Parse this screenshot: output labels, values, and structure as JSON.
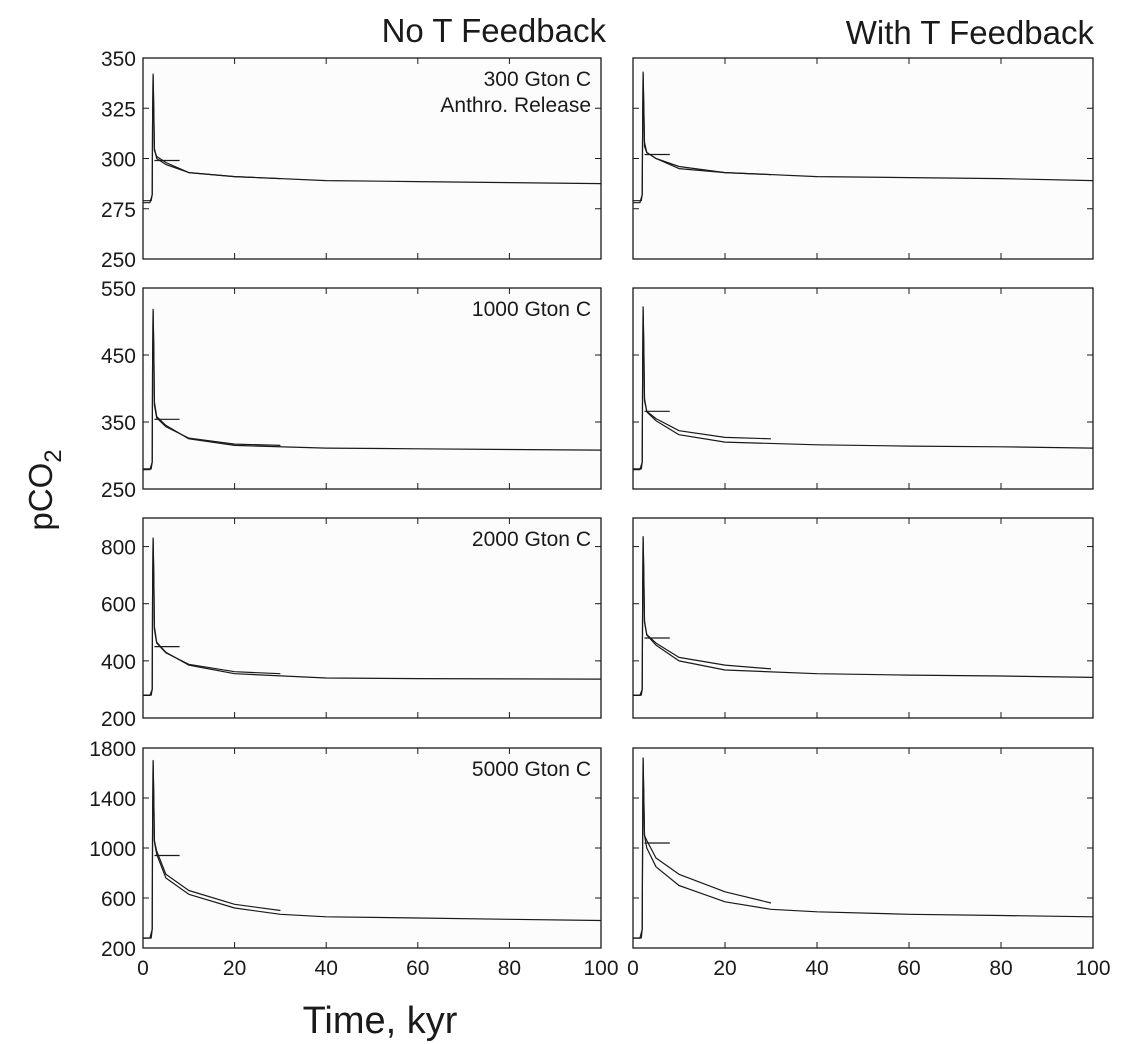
{
  "figure": {
    "column_titles": [
      "No T Feedback",
      "With T Feedback"
    ],
    "ylabel_main": "pCO",
    "ylabel_sub": "2",
    "xlabel": "Time, kyr"
  },
  "chart_data": [
    {
      "type": "line",
      "row": 0,
      "col": 0,
      "annotation": [
        "300 Gton C",
        "Anthro. Release"
      ],
      "xlim": [
        0,
        100
      ],
      "ylim": [
        250,
        350
      ],
      "x_ticks": [
        0,
        20,
        40,
        60,
        80,
        100
      ],
      "y_ticks": [
        250,
        275,
        300,
        325,
        350
      ],
      "y_tick_labels": [
        "250",
        "275",
        "300",
        "325",
        "350"
      ],
      "series": [
        {
          "x": [
            0,
            1.5,
            1.8,
            2.0,
            2.1,
            2.2,
            2.35,
            2.5,
            3,
            5,
            10,
            20,
            40,
            60,
            80,
            100
          ],
          "y": [
            279,
            279,
            279,
            282,
            320,
            342,
            325,
            305,
            300,
            297,
            293,
            291,
            289,
            288.5,
            288,
            287.5
          ]
        },
        {
          "x": [
            0,
            1.5,
            2.0,
            2.1,
            2.2,
            2.35,
            2.5,
            3,
            5,
            10,
            20,
            30
          ],
          "y": [
            278,
            278,
            282,
            320,
            341,
            322,
            304,
            301,
            298,
            293,
            291,
            290
          ]
        },
        {
          "x": [
            2.5,
            8
          ],
          "y": [
            299,
            299
          ]
        }
      ]
    },
    {
      "type": "line",
      "row": 0,
      "col": 1,
      "xlim": [
        0,
        100
      ],
      "ylim": [
        250,
        350
      ],
      "x_ticks": [
        0,
        20,
        40,
        60,
        80,
        100
      ],
      "y_ticks": [
        250,
        275,
        300,
        325,
        350
      ],
      "series": [
        {
          "x": [
            0,
            1.5,
            1.8,
            2.0,
            2.1,
            2.2,
            2.35,
            2.5,
            3,
            5,
            10,
            20,
            40,
            60,
            80,
            100
          ],
          "y": [
            279,
            279,
            279,
            282,
            320,
            343,
            327,
            308,
            303,
            300,
            295,
            293,
            291,
            290.5,
            290,
            289
          ]
        },
        {
          "x": [
            0,
            1.5,
            2.0,
            2.1,
            2.2,
            2.35,
            2.5,
            3,
            5,
            10,
            20,
            30
          ],
          "y": [
            278,
            278,
            282,
            320,
            342,
            324,
            306,
            303,
            300,
            296,
            293,
            292
          ]
        },
        {
          "x": [
            2.5,
            8
          ],
          "y": [
            302,
            302
          ]
        }
      ]
    },
    {
      "type": "line",
      "row": 1,
      "col": 0,
      "annotation": [
        "1000 Gton C"
      ],
      "xlim": [
        0,
        100
      ],
      "ylim": [
        250,
        550
      ],
      "x_ticks": [
        0,
        20,
        40,
        60,
        80,
        100
      ],
      "y_ticks": [
        250,
        350,
        450,
        550
      ],
      "y_tick_labels": [
        "250",
        "350",
        "450",
        "550"
      ],
      "series": [
        {
          "x": [
            0,
            1.5,
            1.8,
            2.0,
            2.1,
            2.2,
            2.35,
            2.5,
            3,
            5,
            10,
            20,
            40,
            60,
            80,
            100
          ],
          "y": [
            280,
            280,
            280,
            290,
            440,
            518,
            460,
            380,
            358,
            345,
            325,
            315,
            311,
            310,
            309,
            308
          ]
        },
        {
          "x": [
            0,
            1.5,
            2.0,
            2.1,
            2.2,
            2.35,
            2.5,
            3,
            5,
            10,
            20,
            30
          ],
          "y": [
            279,
            279,
            290,
            440,
            515,
            455,
            375,
            356,
            343,
            326,
            317,
            315
          ]
        },
        {
          "x": [
            2.5,
            8
          ],
          "y": [
            354,
            354
          ]
        }
      ]
    },
    {
      "type": "line",
      "row": 1,
      "col": 1,
      "xlim": [
        0,
        100
      ],
      "ylim": [
        250,
        550
      ],
      "x_ticks": [
        0,
        20,
        40,
        60,
        80,
        100
      ],
      "y_ticks": [
        250,
        350,
        450,
        550
      ],
      "series": [
        {
          "x": [
            0,
            1.5,
            1.8,
            2.0,
            2.1,
            2.2,
            2.35,
            2.5,
            3,
            5,
            10,
            20,
            40,
            60,
            80,
            100
          ],
          "y": [
            280,
            280,
            280,
            290,
            440,
            522,
            465,
            385,
            365,
            352,
            331,
            320,
            316,
            314,
            313,
            311
          ]
        },
        {
          "x": [
            0,
            1.5,
            2.0,
            2.1,
            2.2,
            2.35,
            2.5,
            3,
            5,
            10,
            20,
            30
          ],
          "y": [
            279,
            279,
            290,
            440,
            518,
            460,
            382,
            366,
            355,
            337,
            327,
            325
          ]
        },
        {
          "x": [
            2.5,
            8
          ],
          "y": [
            366,
            366
          ]
        }
      ]
    },
    {
      "type": "line",
      "row": 2,
      "col": 0,
      "annotation": [
        "2000 Gton C"
      ],
      "xlim": [
        0,
        100
      ],
      "ylim": [
        200,
        900
      ],
      "x_ticks": [
        0,
        20,
        40,
        60,
        80,
        100
      ],
      "y_ticks": [
        200,
        400,
        600,
        800
      ],
      "y_tick_labels": [
        "200",
        "400",
        "600",
        "800"
      ],
      "series": [
        {
          "x": [
            0,
            1.5,
            1.8,
            2.0,
            2.1,
            2.2,
            2.35,
            2.5,
            3,
            5,
            10,
            20,
            40,
            60,
            80,
            100
          ],
          "y": [
            280,
            280,
            280,
            300,
            650,
            830,
            700,
            520,
            465,
            430,
            385,
            355,
            340,
            338,
            337,
            336
          ]
        },
        {
          "x": [
            0,
            1.5,
            2.0,
            2.1,
            2.2,
            2.35,
            2.5,
            3,
            5,
            10,
            20,
            30
          ],
          "y": [
            279,
            279,
            300,
            650,
            825,
            690,
            510,
            462,
            428,
            388,
            362,
            355
          ]
        },
        {
          "x": [
            2.5,
            8
          ],
          "y": [
            450,
            450
          ]
        }
      ]
    },
    {
      "type": "line",
      "row": 2,
      "col": 1,
      "xlim": [
        0,
        100
      ],
      "ylim": [
        200,
        900
      ],
      "x_ticks": [
        0,
        20,
        40,
        60,
        80,
        100
      ],
      "y_ticks": [
        200,
        400,
        600,
        800
      ],
      "series": [
        {
          "x": [
            0,
            1.5,
            1.8,
            2.0,
            2.1,
            2.2,
            2.35,
            2.5,
            3,
            5,
            10,
            20,
            40,
            60,
            80,
            100
          ],
          "y": [
            280,
            280,
            280,
            300,
            650,
            835,
            710,
            540,
            490,
            455,
            400,
            368,
            355,
            350,
            347,
            342
          ]
        },
        {
          "x": [
            0,
            1.5,
            2.0,
            2.1,
            2.2,
            2.35,
            2.5,
            3,
            5,
            10,
            20,
            30
          ],
          "y": [
            279,
            279,
            300,
            650,
            830,
            700,
            535,
            492,
            462,
            412,
            385,
            372
          ]
        },
        {
          "x": [
            2.5,
            8
          ],
          "y": [
            480,
            480
          ]
        }
      ]
    },
    {
      "type": "line",
      "row": 3,
      "col": 0,
      "annotation": [
        "5000 Gton C"
      ],
      "xlim": [
        0,
        100
      ],
      "ylim": [
        200,
        1800
      ],
      "x_ticks": [
        0,
        20,
        40,
        60,
        80,
        100
      ],
      "y_ticks": [
        200,
        600,
        1000,
        1400,
        1800
      ],
      "y_tick_labels": [
        "200",
        "600",
        "1000",
        "1400",
        "1800"
      ],
      "series": [
        {
          "x": [
            0,
            1.5,
            1.8,
            2.0,
            2.1,
            2.2,
            2.35,
            2.5,
            3,
            5,
            10,
            20,
            30,
            40,
            60,
            80,
            100
          ],
          "y": [
            280,
            280,
            280,
            350,
            1200,
            1700,
            1400,
            1050,
            950,
            760,
            630,
            520,
            470,
            450,
            440,
            430,
            420
          ]
        },
        {
          "x": [
            0,
            1.5,
            2.0,
            2.1,
            2.2,
            2.35,
            2.5,
            3,
            5,
            10,
            20,
            30
          ],
          "y": [
            279,
            279,
            350,
            1200,
            1690,
            1390,
            1060,
            975,
            790,
            660,
            550,
            500
          ]
        },
        {
          "x": [
            2.5,
            8
          ],
          "y": [
            940,
            940
          ]
        }
      ]
    },
    {
      "type": "line",
      "row": 3,
      "col": 1,
      "xlim": [
        0,
        100
      ],
      "ylim": [
        200,
        1800
      ],
      "x_ticks": [
        0,
        20,
        40,
        60,
        80,
        100
      ],
      "y_ticks": [
        200,
        600,
        1000,
        1400,
        1800
      ],
      "series": [
        {
          "x": [
            0,
            1.5,
            1.8,
            2.0,
            2.1,
            2.2,
            2.35,
            2.5,
            3,
            5,
            10,
            20,
            30,
            40,
            60,
            80,
            100
          ],
          "y": [
            280,
            280,
            280,
            350,
            1200,
            1720,
            1420,
            1100,
            1000,
            850,
            700,
            570,
            510,
            490,
            470,
            460,
            450
          ]
        },
        {
          "x": [
            0,
            1.5,
            2.0,
            2.1,
            2.2,
            2.35,
            2.5,
            3,
            5,
            10,
            20,
            30
          ],
          "y": [
            279,
            279,
            350,
            1200,
            1710,
            1400,
            1100,
            1060,
            920,
            790,
            650,
            560
          ]
        },
        {
          "x": [
            2.5,
            8
          ],
          "y": [
            1040,
            1040
          ]
        }
      ]
    }
  ]
}
